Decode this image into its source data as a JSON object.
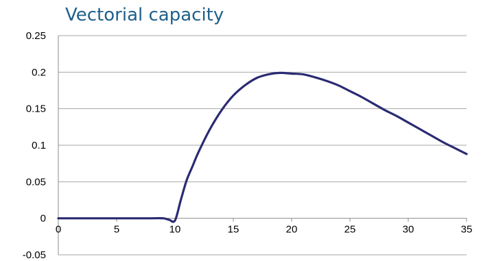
{
  "chart_data": {
    "type": "line",
    "title": "Vectorial capacity",
    "xlabel": "",
    "ylabel": "",
    "xlim": [
      0,
      35
    ],
    "ylim": [
      -0.05,
      0.25
    ],
    "x_ticks": [
      0,
      5,
      10,
      15,
      20,
      25,
      30,
      35
    ],
    "x_tick_labels": [
      "0",
      "5",
      "10",
      "15",
      "20",
      "25",
      "30",
      "35"
    ],
    "y_ticks": [
      -0.05,
      0,
      0.05,
      0.1,
      0.15,
      0.2,
      0.25
    ],
    "y_tick_labels": [
      "-0.05",
      "0",
      "0.05",
      "0.1",
      "0.15",
      "0.2",
      "0.25"
    ],
    "grid": true,
    "legend": "none",
    "colors": {
      "title": "#1f5f8b",
      "line": "#2b2a73",
      "grid": "#a6a6a6",
      "axis": "#8c8c8c"
    },
    "series": [
      {
        "x": [
          0,
          1,
          2,
          3,
          4,
          5,
          6,
          7,
          8,
          9,
          9.5,
          10,
          10.5,
          11,
          11.5,
          12,
          13,
          14,
          15,
          16,
          17,
          18,
          19,
          20,
          21,
          22,
          23,
          24,
          25,
          26,
          27,
          28,
          29,
          30,
          31,
          32,
          33,
          34,
          35
        ],
        "values": [
          0,
          0,
          0,
          0,
          0,
          0,
          0,
          0,
          0,
          0,
          -0.002,
          -0.003,
          0.025,
          0.052,
          0.071,
          0.09,
          0.122,
          0.148,
          0.168,
          0.182,
          0.192,
          0.197,
          0.199,
          0.198,
          0.197,
          0.193,
          0.188,
          0.182,
          0.174,
          0.166,
          0.157,
          0.148,
          0.14,
          0.131,
          0.122,
          0.113,
          0.104,
          0.096,
          0.088
        ]
      }
    ]
  }
}
